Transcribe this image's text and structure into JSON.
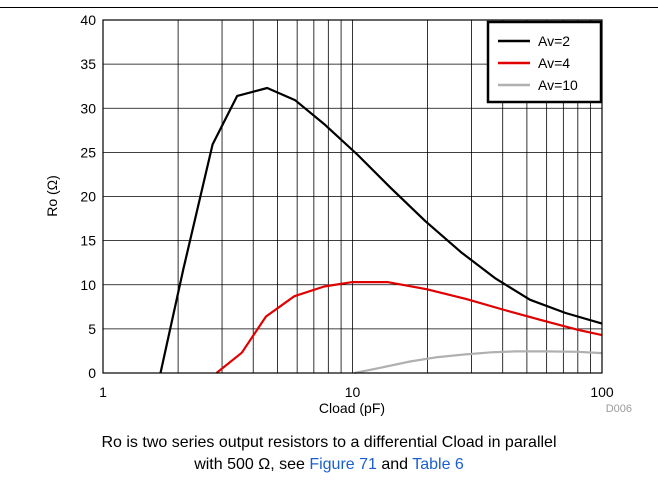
{
  "chart_data": {
    "type": "line",
    "xlabel": "Cload (pF)",
    "ylabel": "Ro (Ω)",
    "xscale": "log",
    "xlim": [
      1,
      100
    ],
    "ylim": [
      0,
      40
    ],
    "x_ticks": [
      "1",
      "10",
      "100"
    ],
    "y_ticks": [
      "0",
      "5",
      "10",
      "15",
      "20",
      "25",
      "30",
      "35",
      "40"
    ],
    "grid": true,
    "legend_position": "top-right",
    "series": [
      {
        "name": "Av=2",
        "color": "#000000",
        "x": [
          1.7,
          2.1,
          2.75,
          3.45,
          4.55,
          5.9,
          7.7,
          10.5,
          14.2,
          19.6,
          27.2,
          37.5,
          51.5,
          71.5,
          100
        ],
        "y": [
          0,
          11.8,
          25.9,
          31.4,
          32.3,
          30.9,
          28.2,
          24.7,
          21.0,
          17.2,
          13.7,
          10.7,
          8.3,
          6.8,
          5.6
        ]
      },
      {
        "name": "Av=4",
        "color": "#e00000",
        "x": [
          2.85,
          3.6,
          4.5,
          5.85,
          7.7,
          10,
          13.8,
          19.8,
          28.5,
          40,
          57,
          80,
          100
        ],
        "y": [
          0,
          2.3,
          6.4,
          8.7,
          9.8,
          10.3,
          10.3,
          9.5,
          8.4,
          7.2,
          6.0,
          4.9,
          4.3
        ]
      },
      {
        "name": "Av=10",
        "color": "#b0b0b0",
        "x": [
          10.2,
          13,
          17,
          22,
          28,
          36,
          45,
          60,
          80,
          100
        ],
        "y": [
          0,
          0.6,
          1.3,
          1.8,
          2.1,
          2.35,
          2.45,
          2.45,
          2.4,
          2.25
        ]
      }
    ],
    "doc_code": "D006"
  },
  "caption": {
    "line1": "Ro is two series output resistors to a differential Cload in parallel",
    "line2_prefix": "with 500 Ω, see ",
    "link1": "Figure 71",
    "middle": " and ",
    "link2": "Table 6"
  }
}
